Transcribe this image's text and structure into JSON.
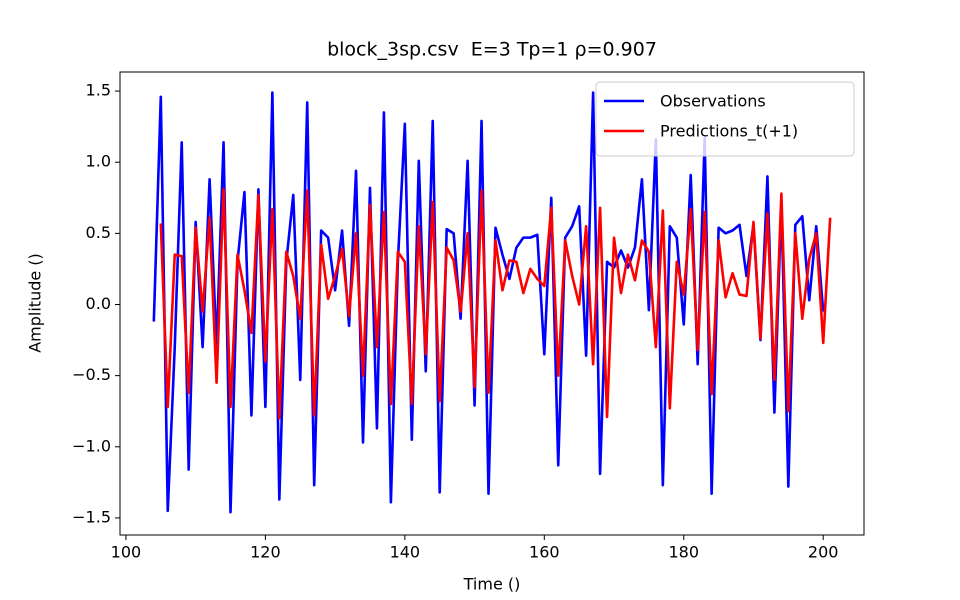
{
  "chart_data": {
    "type": "line",
    "title": "block_3sp.csv  E=3 Tp=1 ρ=0.907",
    "xlabel": "Time ()",
    "ylabel": "Amplitude ()",
    "x": [
      104,
      105,
      106,
      107,
      108,
      109,
      110,
      111,
      112,
      113,
      114,
      115,
      116,
      117,
      118,
      119,
      120,
      121,
      122,
      123,
      124,
      125,
      126,
      127,
      128,
      129,
      130,
      131,
      132,
      133,
      134,
      135,
      136,
      137,
      138,
      139,
      140,
      141,
      142,
      143,
      144,
      145,
      146,
      147,
      148,
      149,
      150,
      151,
      152,
      153,
      154,
      155,
      156,
      157,
      158,
      159,
      160,
      161,
      162,
      163,
      164,
      165,
      166,
      167,
      168,
      169,
      170,
      171,
      172,
      173,
      174,
      175,
      176,
      177,
      178,
      179,
      180,
      181,
      182,
      183,
      184,
      185,
      186,
      187,
      188,
      189,
      190,
      191,
      192,
      193,
      194,
      195,
      196,
      197,
      198,
      199,
      200,
      201
    ],
    "series": [
      {
        "name": "Observations",
        "color": "#0000ff",
        "values": [
          -0.12,
          1.46,
          -1.45,
          -0.3,
          1.14,
          -1.16,
          0.58,
          -0.3,
          0.88,
          -0.3,
          1.14,
          -1.46,
          0.3,
          0.79,
          -0.78,
          0.81,
          -0.72,
          1.49,
          -1.37,
          0.3,
          0.77,
          -0.53,
          1.42,
          -1.27,
          0.52,
          0.47,
          0.1,
          0.52,
          -0.15,
          0.94,
          -0.97,
          0.82,
          -0.87,
          1.35,
          -1.39,
          0.3,
          1.27,
          -0.95,
          1.01,
          -0.47,
          1.29,
          -1.32,
          0.53,
          0.5,
          -0.1,
          1.01,
          -0.71,
          1.29,
          -1.33,
          0.54,
          0.35,
          0.18,
          0.4,
          0.47,
          0.47,
          0.49,
          -0.35,
          0.75,
          -1.13,
          0.47,
          0.55,
          0.69,
          -0.36,
          1.49,
          -1.19,
          0.3,
          0.26,
          0.38,
          0.26,
          0.4,
          0.88,
          -0.04,
          1.16,
          -1.27,
          0.55,
          0.47,
          -0.14,
          0.91,
          -0.42,
          1.17,
          -1.33,
          0.54,
          0.5,
          0.52,
          0.56,
          0.2,
          0.56,
          -0.25,
          0.9,
          -0.76,
          0.72,
          -1.28,
          0.56,
          0.62,
          0.03,
          0.55,
          -0.05,
          null
        ]
      },
      {
        "name": "Predictions_t(+1)",
        "color": "#ff0000",
        "values": [
          null,
          0.57,
          -0.72,
          0.35,
          0.34,
          -0.62,
          0.54,
          -0.05,
          0.61,
          -0.55,
          0.81,
          -0.72,
          0.35,
          0.1,
          -0.2,
          0.77,
          -0.4,
          0.67,
          -0.8,
          0.37,
          0.2,
          -0.1,
          0.8,
          -0.78,
          0.42,
          0.04,
          0.2,
          0.39,
          -0.08,
          0.5,
          -0.5,
          0.7,
          -0.3,
          0.65,
          -0.7,
          0.37,
          0.3,
          -0.7,
          0.55,
          -0.35,
          0.72,
          -0.68,
          0.4,
          0.31,
          -0.05,
          0.5,
          -0.58,
          0.8,
          -0.62,
          0.45,
          0.1,
          0.31,
          0.3,
          0.08,
          0.25,
          0.18,
          0.13,
          0.68,
          -0.5,
          0.45,
          0.2,
          0.0,
          0.55,
          -0.42,
          0.68,
          -0.79,
          0.47,
          0.08,
          0.35,
          0.17,
          0.45,
          0.37,
          -0.3,
          0.66,
          -0.73,
          0.3,
          0.07,
          0.67,
          -0.32,
          0.65,
          -0.63,
          0.45,
          0.05,
          0.22,
          0.07,
          0.06,
          0.58,
          -0.24,
          0.64,
          -0.53,
          0.78,
          -0.75,
          0.5,
          -0.1,
          0.32,
          0.5,
          -0.27,
          0.61
        ]
      }
    ],
    "xlim": [
      99.15,
      205.85
    ],
    "ylim": [
      -1.62,
      1.634
    ],
    "xticks": [
      100,
      120,
      140,
      160,
      180,
      200
    ],
    "yticks": [
      {
        "value": -1.5,
        "label": "−1.5"
      },
      {
        "value": -1.0,
        "label": "−1.0"
      },
      {
        "value": -0.5,
        "label": "−0.5"
      },
      {
        "value": 0,
        "label": "0.0"
      },
      0.5,
      {
        "value": 1.0,
        "label": "1.0"
      },
      1.5
    ],
    "legend": "upper right"
  }
}
